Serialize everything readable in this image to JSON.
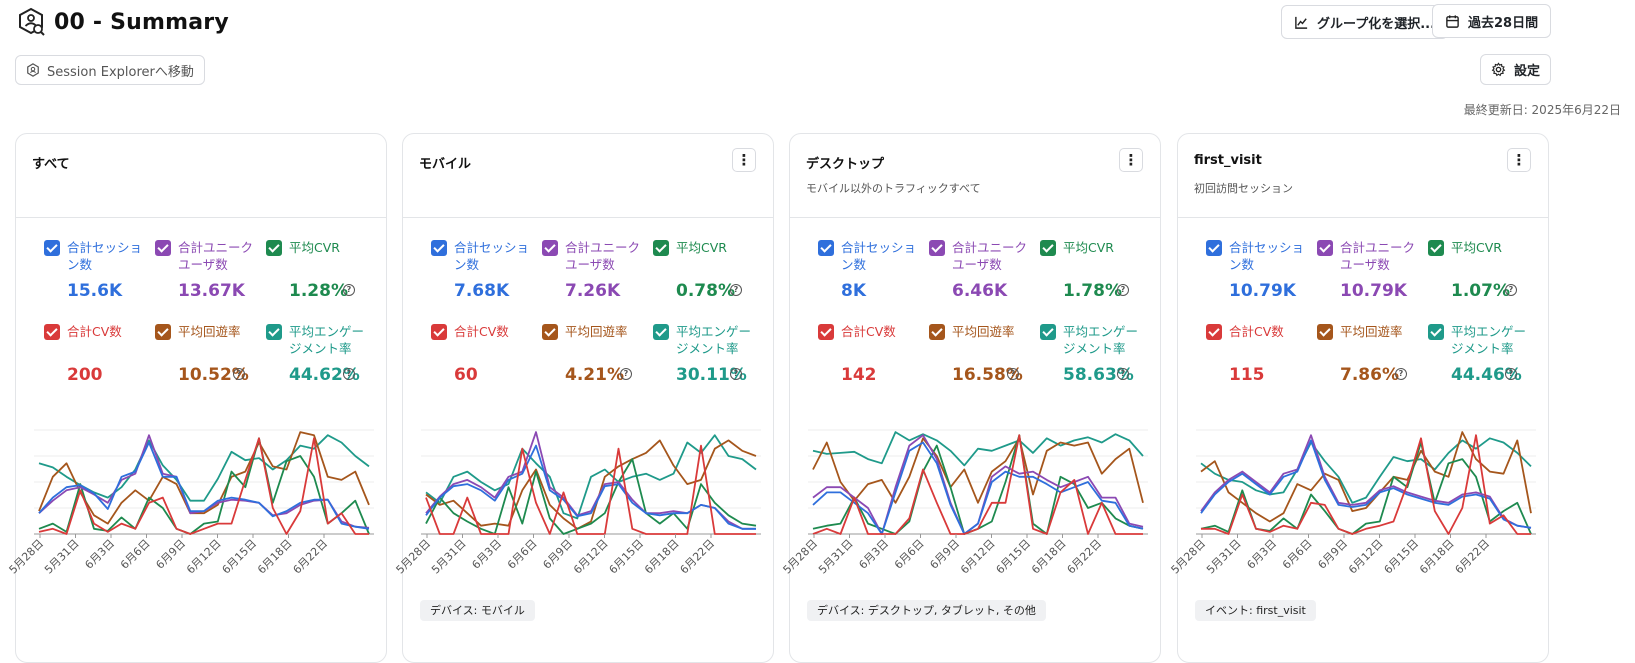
{
  "header": {
    "title": "00 - Summary"
  },
  "toolbar": {
    "grouping_label": "グループ化を選択...",
    "date_range_label": "過去28日間",
    "settings_label": "設定"
  },
  "session_explorer_label": "Session Explorerへ移動",
  "last_updated": "最終更新日: 2025年6月22日",
  "colors": {
    "sessions": "#2f6fdc",
    "users": "#8b49b3",
    "cvr": "#1e8a4f",
    "cv": "#d93a3a",
    "bounce": "#a5561c",
    "engagement": "#1f9a8a"
  },
  "metric_labels": {
    "sessions": "合計セッション数",
    "users": "合計ユニークユーザ数",
    "cvr": "平均CVR",
    "cv": "合計CV数",
    "bounce": "平均回遊率",
    "engagement": "平均エンゲージメント率"
  },
  "x_ticks": [
    "5月28日",
    "5月31日",
    "6月3日",
    "6月6日",
    "6月9日",
    "6月12日",
    "6月15日",
    "6月18日",
    "6月22日"
  ],
  "cards": [
    {
      "title": "すべて",
      "subtitle": "",
      "tag": "",
      "has_menu": false,
      "metrics": {
        "sessions": "15.6K",
        "users": "13.67K",
        "cvr": "1.28%",
        "cv": "200",
        "bounce": "10.52%",
        "engagement": "44.62%"
      },
      "chart_data": {
        "type": "line",
        "series": [
          {
            "key": "engagement",
            "values": [
              0.68,
              0.64,
              0.55,
              0.47,
              0.4,
              0.35,
              0.45,
              0.62,
              0.9,
              0.66,
              0.52,
              0.32,
              0.32,
              0.53,
              0.79,
              0.71,
              0.73,
              0.62,
              0.71,
              0.85,
              0.82,
              0.95,
              0.88,
              0.75,
              0.65
            ]
          },
          {
            "key": "bounce",
            "values": [
              0.22,
              0.55,
              0.68,
              0.4,
              0.18,
              0.1,
              0.3,
              0.42,
              0.32,
              0.55,
              0.48,
              0.2,
              0.2,
              0.28,
              0.55,
              0.6,
              0.88,
              0.65,
              0.62,
              0.98,
              0.95,
              0.55,
              0.52,
              0.6,
              0.28
            ]
          },
          {
            "key": "cvr",
            "values": [
              0.05,
              0.1,
              0.02,
              0.48,
              0.05,
              0.03,
              0.16,
              0.05,
              0.35,
              0.25,
              0.05,
              0.0,
              0.1,
              0.12,
              0.6,
              0.45,
              0.92,
              0.3,
              0.7,
              0.75,
              0.55,
              0.1,
              0.2,
              0.32,
              0.0
            ]
          },
          {
            "key": "users",
            "values": [
              0.2,
              0.32,
              0.42,
              0.45,
              0.38,
              0.3,
              0.52,
              0.58,
              0.95,
              0.58,
              0.55,
              0.2,
              0.22,
              0.3,
              0.33,
              0.32,
              0.3,
              0.18,
              0.2,
              0.28,
              0.32,
              0.33,
              0.12,
              0.07,
              0.06
            ]
          },
          {
            "key": "sessions",
            "values": [
              0.2,
              0.35,
              0.45,
              0.47,
              0.39,
              0.24,
              0.55,
              0.6,
              0.88,
              0.55,
              0.55,
              0.22,
              0.22,
              0.32,
              0.35,
              0.33,
              0.3,
              0.17,
              0.22,
              0.3,
              0.33,
              0.33,
              0.1,
              0.07,
              0.05
            ]
          },
          {
            "key": "cv",
            "values": [
              0.02,
              0.05,
              0.0,
              0.42,
              0.1,
              0.02,
              0.1,
              0.05,
              0.3,
              0.35,
              0.05,
              0.0,
              0.05,
              0.1,
              0.1,
              0.52,
              0.92,
              0.25,
              0.0,
              0.22,
              0.92,
              0.1,
              0.2,
              0.0,
              0.0
            ]
          }
        ]
      }
    },
    {
      "title": "モバイル",
      "subtitle": "",
      "tag": "デバイス: モバイル",
      "has_menu": true,
      "metrics": {
        "sessions": "7.68K",
        "users": "7.26K",
        "cvr": "0.78%",
        "cv": "60",
        "bounce": "4.21%",
        "engagement": "30.11%"
      },
      "chart_data": {
        "type": "line",
        "series": [
          {
            "key": "engagement",
            "values": [
              0.4,
              0.3,
              0.55,
              0.6,
              0.5,
              0.42,
              0.48,
              0.82,
              0.68,
              0.55,
              0.2,
              0.15,
              0.55,
              0.62,
              0.5,
              0.55,
              0.58,
              0.52,
              0.58,
              0.88,
              0.78,
              0.95,
              0.75,
              0.72,
              0.62
            ]
          },
          {
            "key": "bounce",
            "values": [
              0.38,
              0.28,
              0.32,
              0.2,
              0.08,
              0.1,
              0.08,
              0.42,
              0.62,
              0.28,
              0.15,
              0.05,
              0.12,
              0.55,
              0.65,
              0.72,
              0.78,
              0.9,
              0.66,
              0.48,
              0.52,
              0.82,
              0.9,
              0.8,
              0.75
            ]
          },
          {
            "key": "cvr",
            "values": [
              0.1,
              0.35,
              0.2,
              0.12,
              0.05,
              0.0,
              0.45,
              0.1,
              0.6,
              0.15,
              0.0,
              0.05,
              0.1,
              0.2,
              0.5,
              0.72,
              0.2,
              0.1,
              0.2,
              0.05,
              0.48,
              0.3,
              0.18,
              0.1,
              0.08
            ]
          },
          {
            "key": "users",
            "values": [
              0.2,
              0.36,
              0.48,
              0.52,
              0.45,
              0.35,
              0.55,
              0.6,
              0.98,
              0.45,
              0.35,
              0.18,
              0.22,
              0.48,
              0.5,
              0.33,
              0.2,
              0.2,
              0.22,
              0.2,
              0.28,
              0.25,
              0.12,
              0.05,
              0.05
            ]
          },
          {
            "key": "sessions",
            "values": [
              0.18,
              0.35,
              0.46,
              0.48,
              0.42,
              0.32,
              0.52,
              0.58,
              0.85,
              0.42,
              0.33,
              0.17,
              0.2,
              0.46,
              0.48,
              0.3,
              0.2,
              0.18,
              0.2,
              0.2,
              0.28,
              0.25,
              0.1,
              0.05,
              0.05
            ]
          },
          {
            "key": "cv",
            "values": [
              0.35,
              0.0,
              0.0,
              0.35,
              0.0,
              0.0,
              0.0,
              0.82,
              0.3,
              0.0,
              0.4,
              0.0,
              0.0,
              0.0,
              0.82,
              0.05,
              0.0,
              0.0,
              0.0,
              0.0,
              0.85,
              0.0,
              0.0,
              0.0,
              0.0
            ]
          }
        ]
      }
    },
    {
      "title": "デスクトップ",
      "subtitle": "モバイル以外のトラフィックすべて",
      "tag": "デバイス: デスクトップ, タブレット, その他",
      "has_menu": true,
      "metrics": {
        "sessions": "8K",
        "users": "6.46K",
        "cvr": "1.78%",
        "cv": "142",
        "bounce": "16.58%",
        "engagement": "58.63%"
      },
      "chart_data": {
        "type": "line",
        "series": [
          {
            "key": "engagement",
            "values": [
              0.8,
              0.77,
              0.78,
              0.79,
              0.72,
              0.68,
              0.98,
              0.9,
              0.96,
              0.9,
              0.8,
              0.66,
              0.82,
              0.8,
              0.85,
              0.9,
              0.78,
              0.92,
              0.85,
              0.9,
              0.93,
              0.88,
              0.96,
              0.9,
              0.75
            ]
          },
          {
            "key": "bounce",
            "values": [
              0.62,
              0.88,
              0.5,
              0.32,
              0.48,
              0.52,
              0.3,
              0.55,
              0.92,
              0.75,
              0.45,
              0.62,
              0.3,
              0.6,
              0.7,
              0.92,
              0.38,
              0.8,
              0.88,
              0.85,
              0.88,
              0.58,
              0.72,
              0.82,
              0.3
            ]
          },
          {
            "key": "cvr",
            "values": [
              0.05,
              0.08,
              0.1,
              0.35,
              0.1,
              0.05,
              0.0,
              0.12,
              0.6,
              0.85,
              0.45,
              0.0,
              0.05,
              0.12,
              0.5,
              0.95,
              0.1,
              0.0,
              0.55,
              0.48,
              0.25,
              0.3,
              0.15,
              0.08,
              0.05
            ]
          },
          {
            "key": "users",
            "values": [
              0.35,
              0.45,
              0.45,
              0.35,
              0.25,
              0.0,
              0.45,
              0.85,
              0.95,
              0.72,
              0.3,
              0.0,
              0.1,
              0.55,
              0.65,
              0.58,
              0.6,
              0.52,
              0.45,
              0.5,
              0.55,
              0.35,
              0.35,
              0.1,
              0.07
            ]
          },
          {
            "key": "sessions",
            "values": [
              0.28,
              0.4,
              0.4,
              0.3,
              0.2,
              0.0,
              0.4,
              0.8,
              0.88,
              0.68,
              0.28,
              0.0,
              0.1,
              0.5,
              0.6,
              0.55,
              0.55,
              0.48,
              0.4,
              0.45,
              0.5,
              0.32,
              0.3,
              0.08,
              0.05
            ]
          },
          {
            "key": "cv",
            "values": [
              0.0,
              0.05,
              0.0,
              0.35,
              0.0,
              0.0,
              0.0,
              0.15,
              0.62,
              0.3,
              0.0,
              0.0,
              0.05,
              0.3,
              0.3,
              0.95,
              0.05,
              0.0,
              0.4,
              0.52,
              0.0,
              0.3,
              0.0,
              0.0,
              0.0
            ]
          }
        ]
      }
    },
    {
      "title": "first_visit",
      "subtitle": "初回訪問セッション",
      "tag": "イベント: first_visit",
      "has_menu": true,
      "metrics": {
        "sessions": "10.79K",
        "users": "10.79K",
        "cvr": "1.07%",
        "cv": "115",
        "bounce": "7.86%",
        "engagement": "44.46%"
      },
      "chart_data": {
        "type": "line",
        "series": [
          {
            "key": "engagement",
            "values": [
              0.68,
              0.58,
              0.52,
              0.5,
              0.42,
              0.38,
              0.4,
              0.62,
              0.88,
              0.7,
              0.55,
              0.3,
              0.35,
              0.55,
              0.74,
              0.7,
              0.72,
              0.62,
              0.78,
              0.9,
              0.82,
              0.92,
              0.88,
              0.78,
              0.65
            ]
          },
          {
            "key": "bounce",
            "values": [
              0.6,
              0.7,
              0.4,
              0.3,
              0.2,
              0.12,
              0.2,
              0.48,
              0.42,
              0.58,
              0.52,
              0.22,
              0.25,
              0.4,
              0.55,
              0.52,
              0.8,
              0.6,
              0.55,
              0.98,
              0.72,
              0.6,
              0.58,
              0.9,
              0.2
            ]
          },
          {
            "key": "cvr",
            "values": [
              0.05,
              0.08,
              0.02,
              0.42,
              0.05,
              0.03,
              0.15,
              0.05,
              0.38,
              0.22,
              0.05,
              0.0,
              0.1,
              0.12,
              0.55,
              0.45,
              0.88,
              0.3,
              0.68,
              0.72,
              0.55,
              0.12,
              0.22,
              0.3,
              0.0
            ]
          },
          {
            "key": "users",
            "values": [
              0.22,
              0.4,
              0.52,
              0.6,
              0.5,
              0.4,
              0.58,
              0.62,
              0.95,
              0.55,
              0.3,
              0.28,
              0.3,
              0.42,
              0.46,
              0.4,
              0.36,
              0.32,
              0.3,
              0.38,
              0.4,
              0.36,
              0.15,
              0.08,
              0.06
            ]
          },
          {
            "key": "sessions",
            "values": [
              0.2,
              0.38,
              0.5,
              0.58,
              0.48,
              0.38,
              0.55,
              0.6,
              0.9,
              0.52,
              0.28,
              0.26,
              0.28,
              0.4,
              0.44,
              0.38,
              0.34,
              0.3,
              0.28,
              0.36,
              0.38,
              0.34,
              0.14,
              0.08,
              0.06
            ]
          },
          {
            "key": "cv",
            "values": [
              0.05,
              0.05,
              0.0,
              0.38,
              0.05,
              0.02,
              0.08,
              0.05,
              0.3,
              0.28,
              0.05,
              0.0,
              0.05,
              0.08,
              0.12,
              0.48,
              0.92,
              0.22,
              0.0,
              0.25,
              0.95,
              0.1,
              0.18,
              0.0,
              0.0
            ]
          }
        ]
      }
    }
  ]
}
